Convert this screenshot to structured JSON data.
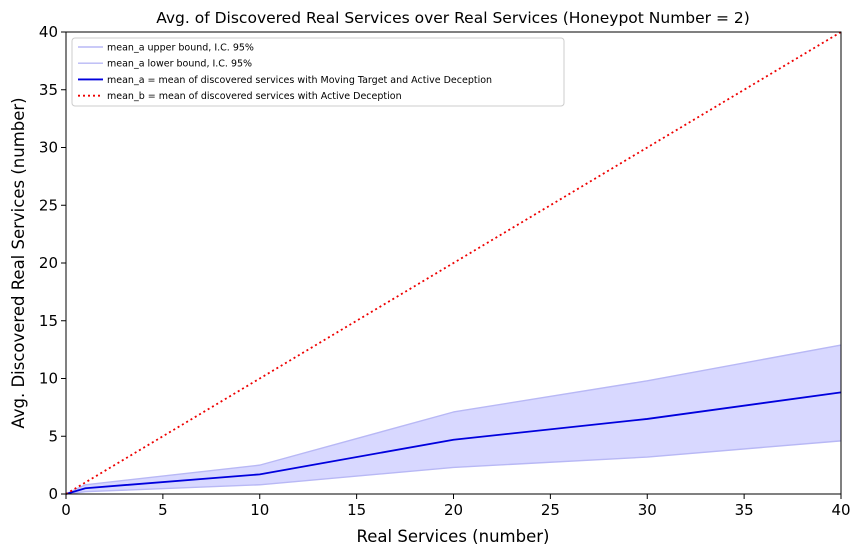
{
  "chart_data": {
    "type": "line",
    "title": "Avg. of Discovered Real Services over Real Services (Honeypot Number = 2)",
    "xlabel": "Real Services (number)",
    "ylabel": "Avg. Discovered Real Services (number)",
    "xlim": [
      0,
      40
    ],
    "ylim": [
      0,
      40
    ],
    "xticks": [
      0,
      5,
      10,
      15,
      20,
      25,
      30,
      35,
      40
    ],
    "yticks": [
      0,
      5,
      10,
      15,
      20,
      25,
      30,
      35,
      40
    ],
    "grid": false,
    "legend_position": "top-left",
    "x": [
      0,
      1,
      10,
      20,
      30,
      40
    ],
    "series": [
      {
        "name": "mean_a upper bound, I.C. 95%",
        "values": [
          0,
          0.8,
          2.5,
          7.1,
          9.8,
          12.9
        ],
        "color": "#b8b8f5",
        "style": "solid"
      },
      {
        "name": "mean_a lower bound, I.C. 95%",
        "values": [
          0,
          0.2,
          0.8,
          2.3,
          3.2,
          4.6
        ],
        "color": "#b8b8f5",
        "style": "solid"
      },
      {
        "name": "mean_a = mean of discovered services with Moving Target and Active Deception",
        "values": [
          0,
          0.5,
          1.7,
          4.7,
          6.5,
          8.8
        ],
        "color": "#0000dd",
        "style": "solid"
      },
      {
        "name": "mean_b = mean of discovered services with Active Deception",
        "values": [
          0,
          1,
          10,
          20,
          30,
          40
        ],
        "color": "#ee0000",
        "style": "dotted"
      }
    ],
    "band_fill_color": "#d8d8ff"
  }
}
